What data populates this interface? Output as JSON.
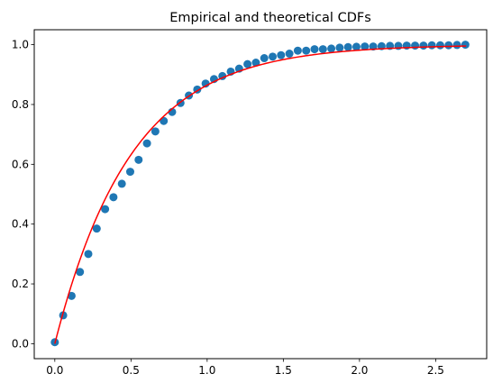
{
  "chart_data": {
    "type": "scatter",
    "title": "Empirical and theoretical CDFs",
    "xlabel": "",
    "ylabel": "",
    "xlim": [
      -0.135,
      2.835
    ],
    "ylim": [
      -0.05,
      1.05
    ],
    "grid": false,
    "x_ticks": [
      0.0,
      0.5,
      1.0,
      1.5,
      2.0,
      2.5
    ],
    "x_tick_labels": [
      "0.0",
      "0.5",
      "1.0",
      "1.5",
      "2.0",
      "2.5"
    ],
    "y_ticks": [
      0.0,
      0.2,
      0.4,
      0.6,
      0.8,
      1.0
    ],
    "y_tick_labels": [
      "0.0",
      "0.2",
      "0.4",
      "0.6",
      "0.8",
      "1.0"
    ],
    "series": [
      {
        "type": "scatter",
        "color": "#1f77b4",
        "x": [
          0.0,
          0.055,
          0.11,
          0.165,
          0.22,
          0.275,
          0.33,
          0.385,
          0.44,
          0.495,
          0.55,
          0.605,
          0.66,
          0.715,
          0.77,
          0.825,
          0.88,
          0.935,
          0.99,
          1.045,
          1.1,
          1.155,
          1.21,
          1.265,
          1.32,
          1.375,
          1.43,
          1.485,
          1.54,
          1.595,
          1.65,
          1.705,
          1.76,
          1.815,
          1.87,
          1.925,
          1.98,
          2.035,
          2.09,
          2.145,
          2.2,
          2.255,
          2.31,
          2.365,
          2.42,
          2.475,
          2.53,
          2.585,
          2.64,
          2.695
        ],
        "y": [
          0.005,
          0.095,
          0.16,
          0.24,
          0.3,
          0.385,
          0.45,
          0.49,
          0.535,
          0.575,
          0.615,
          0.67,
          0.71,
          0.745,
          0.775,
          0.805,
          0.83,
          0.85,
          0.87,
          0.885,
          0.895,
          0.91,
          0.92,
          0.935,
          0.94,
          0.955,
          0.96,
          0.965,
          0.97,
          0.98,
          0.98,
          0.985,
          0.985,
          0.987,
          0.99,
          0.992,
          0.993,
          0.994,
          0.994,
          0.995,
          0.996,
          0.996,
          0.997,
          0.997,
          0.997,
          0.998,
          0.998,
          0.998,
          0.999,
          1.0
        ]
      },
      {
        "type": "line",
        "color": "#ff0000",
        "function": "exponential-cdf",
        "rate": 2.0,
        "x_range": [
          0.0,
          2.7
        ]
      }
    ]
  }
}
